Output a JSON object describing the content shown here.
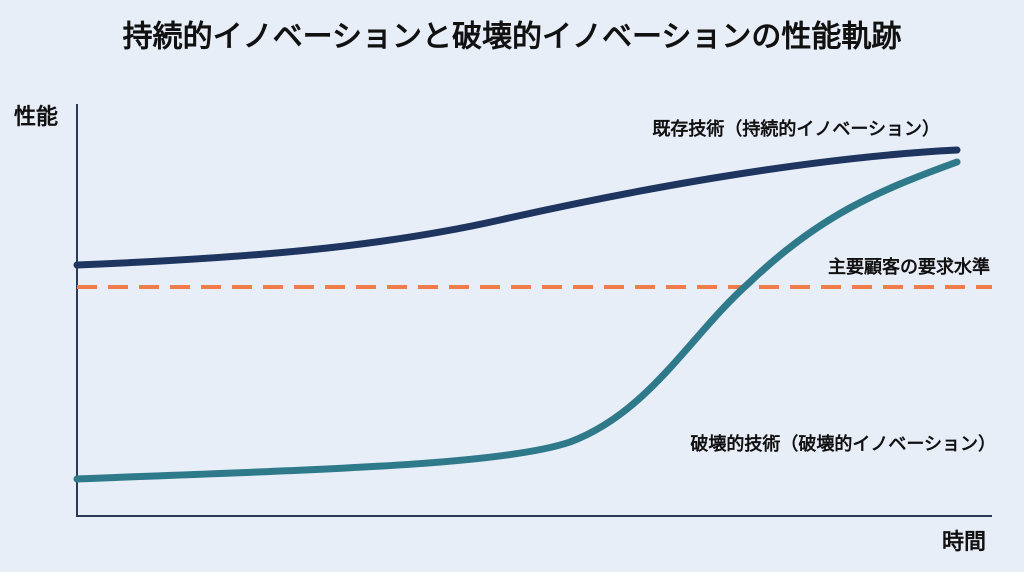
{
  "title": "持続的イノベーションと破壊的イノベーションの性能軌跡",
  "y_axis_label": "性能",
  "x_axis_label": "時間",
  "curves": {
    "sustaining": "既存技術（持続的イノベーション）",
    "threshold": "主要顧客の要求水準",
    "disruptive": "破壊的技術（破壊的イノベーション）"
  }
}
